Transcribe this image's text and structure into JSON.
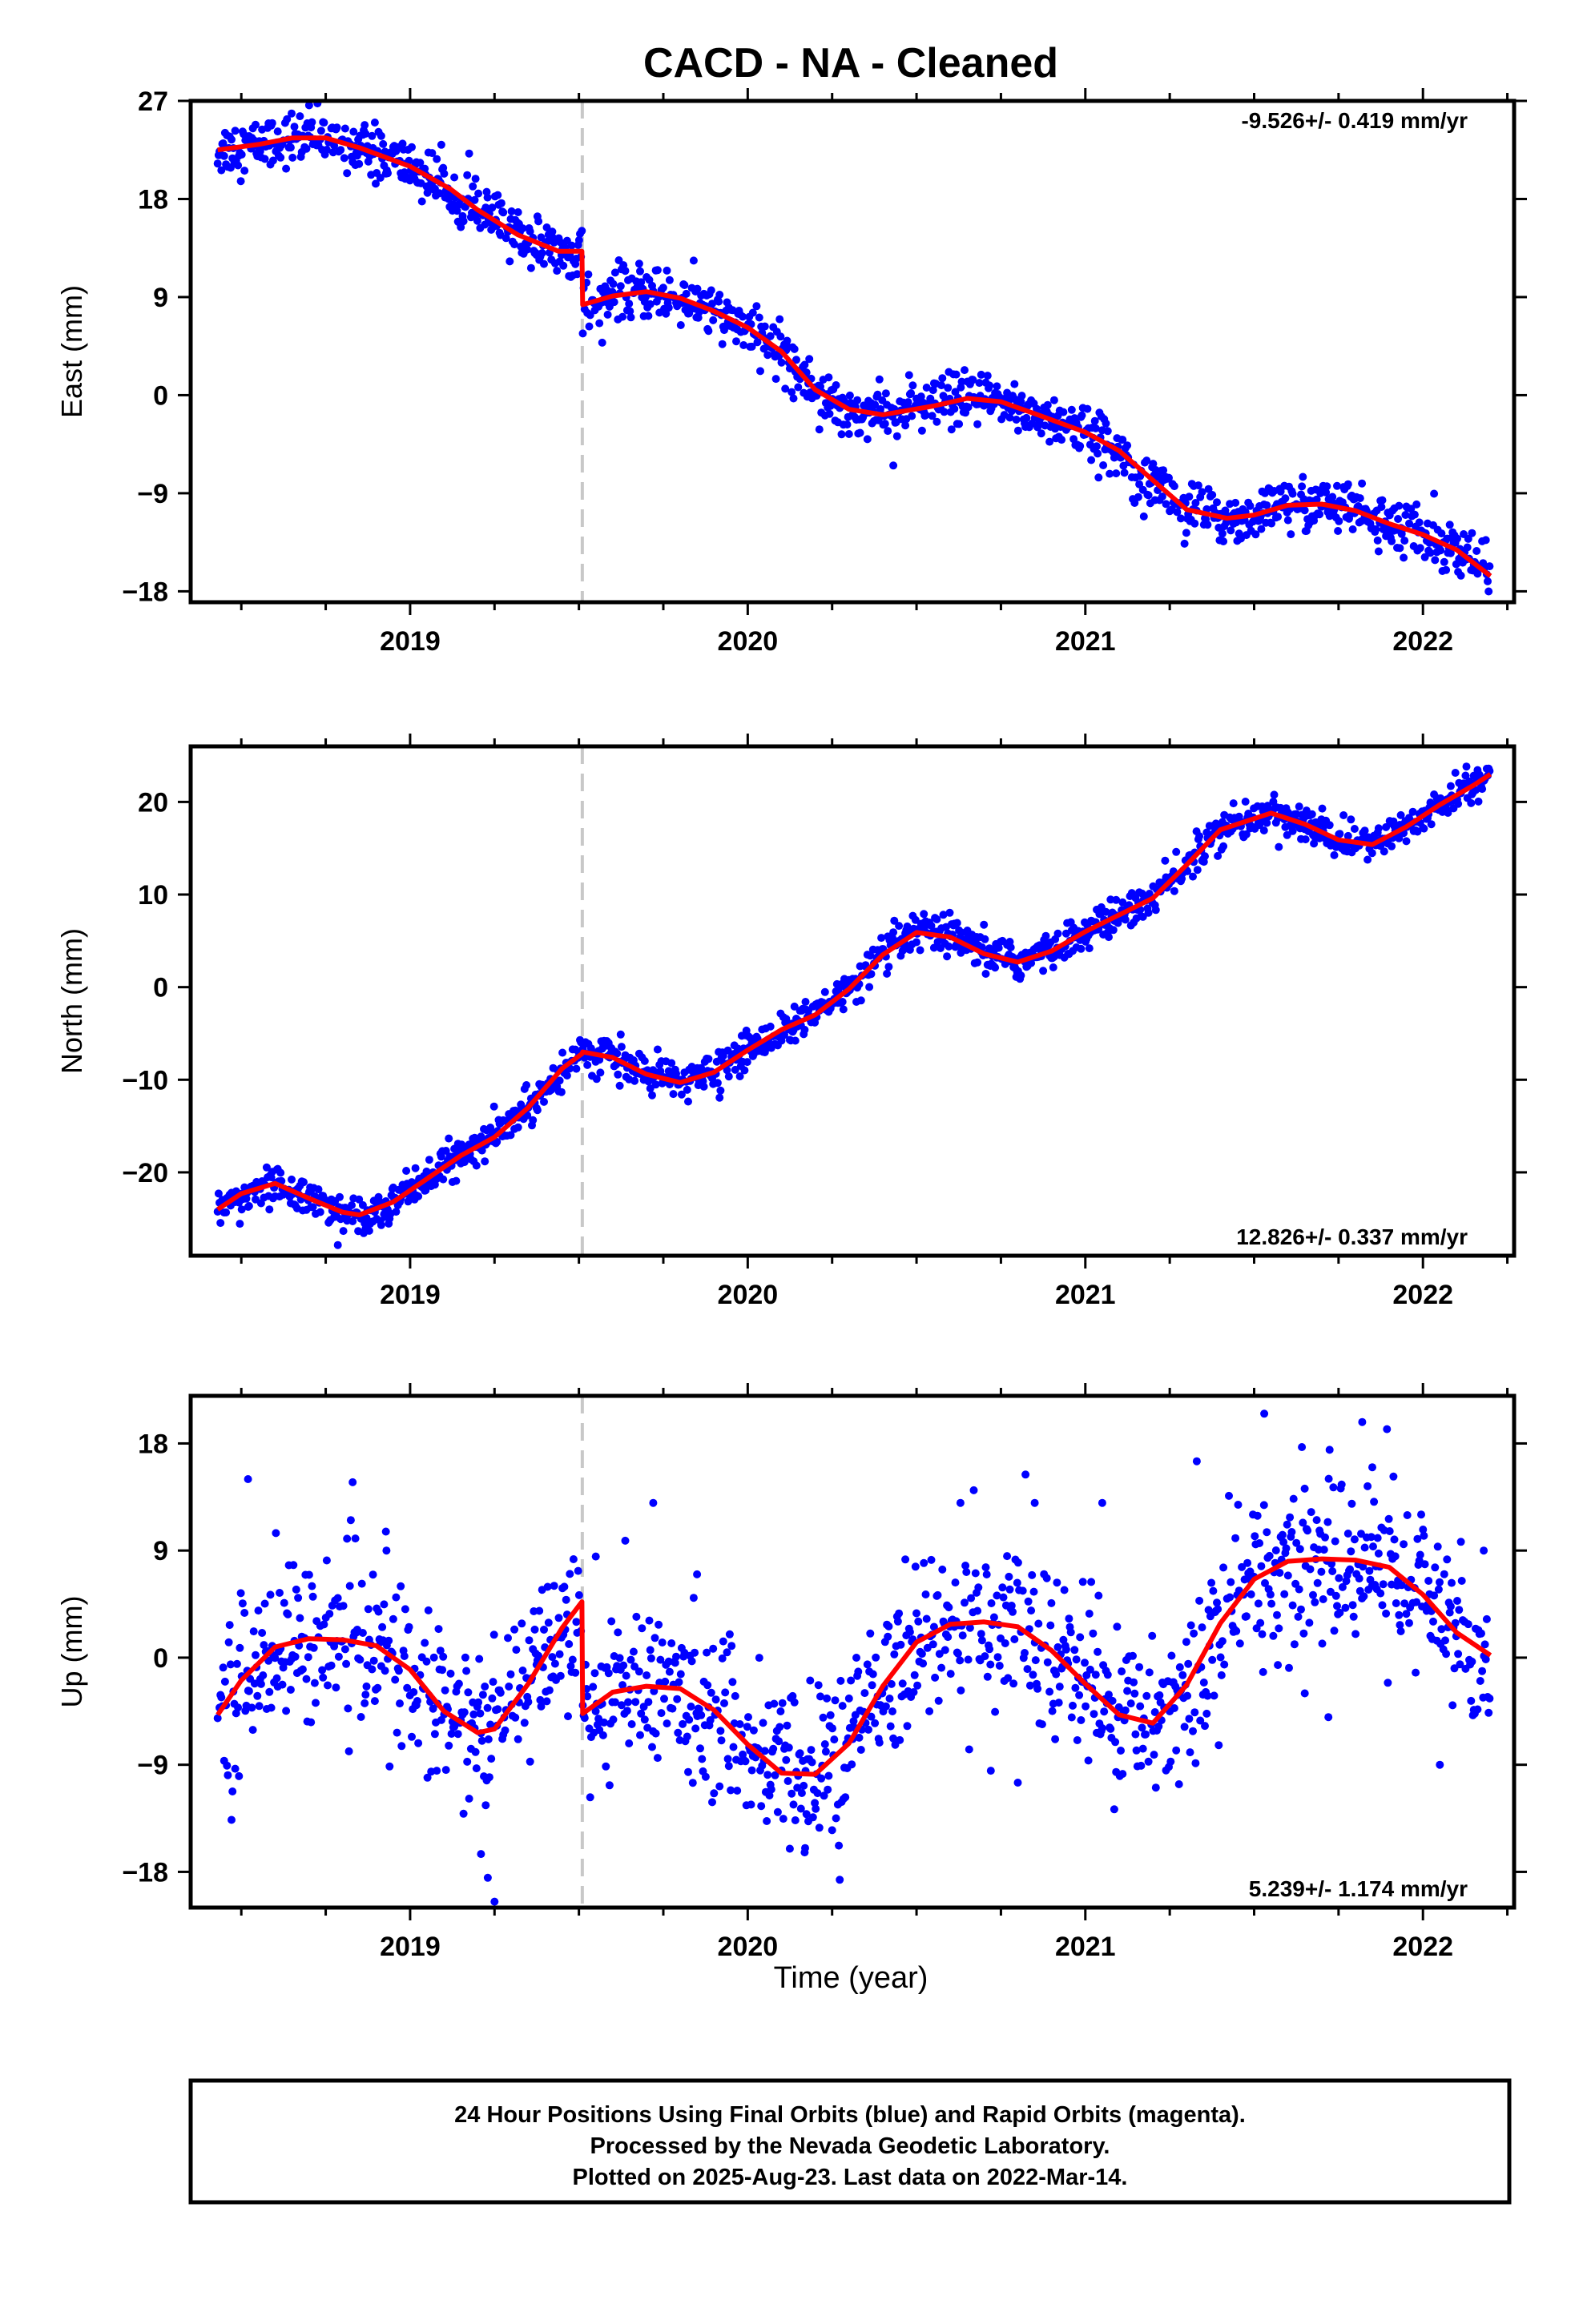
{
  "title": "CACD  - NA - Cleaned",
  "x_axis_label": "Time (year)",
  "footer": {
    "line1": "24 Hour Positions Using Final Orbits (blue) and Rapid Orbits (magenta).",
    "line2": "Processed by the Nevada Geodetic Laboratory.",
    "line3": "Plotted on 2025-Aug-23. Last data on 2022-Mar-14."
  },
  "colors": {
    "points": "#0000ff",
    "model": "#ff0000",
    "step_line": "#c8c8c8"
  },
  "chart_data": [
    {
      "type": "scatter",
      "ylabel": "East (mm)",
      "rate": "-9.526+/- 0.419 mm/yr",
      "rate_placement": "top-right",
      "xlim": [
        2018.35,
        2022.27
      ],
      "ylim": [
        -19,
        27
      ],
      "yticks": [
        27,
        18,
        9,
        0,
        -9,
        -18
      ],
      "xticks": [
        2019,
        2020,
        2021,
        2022
      ],
      "step_epoch": 2019.51,
      "noise": 1.2,
      "model": [
        [
          2018.43,
          22.5
        ],
        [
          2018.55,
          23.0
        ],
        [
          2018.65,
          23.6
        ],
        [
          2018.75,
          23.6
        ],
        [
          2018.85,
          22.7
        ],
        [
          2019.0,
          21.0
        ],
        [
          2019.12,
          18.9
        ],
        [
          2019.2,
          17.0
        ],
        [
          2019.32,
          14.7
        ],
        [
          2019.44,
          13.2
        ],
        [
          2019.509,
          13.2
        ],
        [
          2019.511,
          8.3
        ],
        [
          2019.6,
          9.1
        ],
        [
          2019.7,
          9.5
        ],
        [
          2019.8,
          8.9
        ],
        [
          2019.9,
          7.7
        ],
        [
          2020.0,
          6.2
        ],
        [
          2020.1,
          4.0
        ],
        [
          2020.2,
          0.5
        ],
        [
          2020.3,
          -1.3
        ],
        [
          2020.4,
          -1.8
        ],
        [
          2020.55,
          -1.0
        ],
        [
          2020.65,
          -0.3
        ],
        [
          2020.75,
          -0.6
        ],
        [
          2020.85,
          -1.7
        ],
        [
          2021.0,
          -3.4
        ],
        [
          2021.1,
          -5.1
        ],
        [
          2021.2,
          -7.8
        ],
        [
          2021.3,
          -10.5
        ],
        [
          2021.42,
          -11.3
        ],
        [
          2021.5,
          -11.0
        ],
        [
          2021.6,
          -10.1
        ],
        [
          2021.7,
          -10.0
        ],
        [
          2021.8,
          -10.6
        ],
        [
          2021.9,
          -11.8
        ],
        [
          2022.0,
          -12.8
        ],
        [
          2022.1,
          -14.2
        ],
        [
          2022.2,
          -16.6
        ]
      ]
    },
    {
      "type": "scatter",
      "ylabel": "North (mm)",
      "rate": "12.826+/- 0.337 mm/yr",
      "rate_placement": "bottom-right",
      "xlim": [
        2018.35,
        2022.27
      ],
      "ylim": [
        -29,
        26
      ],
      "yticks": [
        20,
        10,
        0,
        -10,
        -20
      ],
      "xticks": [
        2019,
        2020,
        2021,
        2022
      ],
      "step_epoch": 2019.51,
      "noise": 1.0,
      "model": [
        [
          2018.43,
          -24.0
        ],
        [
          2018.5,
          -22.3
        ],
        [
          2018.6,
          -21.2
        ],
        [
          2018.7,
          -22.8
        ],
        [
          2018.8,
          -24.3
        ],
        [
          2018.85,
          -24.6
        ],
        [
          2018.95,
          -23.2
        ],
        [
          2019.05,
          -20.7
        ],
        [
          2019.15,
          -18.2
        ],
        [
          2019.25,
          -16.2
        ],
        [
          2019.35,
          -13.0
        ],
        [
          2019.45,
          -8.8
        ],
        [
          2019.509,
          -7.2
        ],
        [
          2019.511,
          -7.0
        ],
        [
          2019.6,
          -7.6
        ],
        [
          2019.7,
          -9.4
        ],
        [
          2019.8,
          -10.3
        ],
        [
          2019.9,
          -9.2
        ],
        [
          2020.0,
          -6.8
        ],
        [
          2020.1,
          -4.6
        ],
        [
          2020.2,
          -3.0
        ],
        [
          2020.3,
          -0.2
        ],
        [
          2020.4,
          3.5
        ],
        [
          2020.5,
          5.9
        ],
        [
          2020.6,
          5.4
        ],
        [
          2020.7,
          3.6
        ],
        [
          2020.8,
          2.7
        ],
        [
          2020.9,
          3.9
        ],
        [
          2021.0,
          6.0
        ],
        [
          2021.1,
          7.8
        ],
        [
          2021.2,
          9.6
        ],
        [
          2021.3,
          13.2
        ],
        [
          2021.4,
          17.0
        ],
        [
          2021.55,
          18.8
        ],
        [
          2021.65,
          17.6
        ],
        [
          2021.75,
          15.9
        ],
        [
          2021.85,
          15.4
        ],
        [
          2021.95,
          17.3
        ],
        [
          2022.05,
          19.7
        ],
        [
          2022.15,
          21.8
        ],
        [
          2022.2,
          23.0
        ]
      ]
    },
    {
      "type": "scatter",
      "ylabel": "Up (mm)",
      "rate": "5.239+/- 1.174 mm/yr",
      "rate_placement": "bottom-right",
      "xlim": [
        2018.35,
        2022.27
      ],
      "ylim": [
        -21,
        22
      ],
      "yticks": [
        18,
        9,
        0,
        -9,
        -18
      ],
      "xticks": [
        2019,
        2020,
        2021,
        2022
      ],
      "step_epoch": 2019.51,
      "noise": 3.5,
      "model": [
        [
          2018.43,
          -4.8
        ],
        [
          2018.5,
          -1.9
        ],
        [
          2018.6,
          0.9
        ],
        [
          2018.7,
          1.6
        ],
        [
          2018.8,
          1.5
        ],
        [
          2018.9,
          1.0
        ],
        [
          2019.0,
          -1.0
        ],
        [
          2019.1,
          -4.5
        ],
        [
          2019.2,
          -6.3
        ],
        [
          2019.25,
          -6.0
        ],
        [
          2019.35,
          -2.2
        ],
        [
          2019.45,
          2.5
        ],
        [
          2019.509,
          4.7
        ],
        [
          2019.511,
          -4.7
        ],
        [
          2019.6,
          -2.9
        ],
        [
          2019.7,
          -2.4
        ],
        [
          2019.8,
          -2.6
        ],
        [
          2019.9,
          -4.4
        ],
        [
          2020.0,
          -7.3
        ],
        [
          2020.1,
          -9.7
        ],
        [
          2020.2,
          -9.8
        ],
        [
          2020.3,
          -7.2
        ],
        [
          2020.4,
          -2.4
        ],
        [
          2020.5,
          1.3
        ],
        [
          2020.6,
          2.8
        ],
        [
          2020.7,
          3.0
        ],
        [
          2020.8,
          2.6
        ],
        [
          2020.9,
          0.6
        ],
        [
          2021.0,
          -2.2
        ],
        [
          2021.1,
          -4.8
        ],
        [
          2021.2,
          -5.5
        ],
        [
          2021.3,
          -2.3
        ],
        [
          2021.4,
          2.9
        ],
        [
          2021.5,
          6.6
        ],
        [
          2021.6,
          8.1
        ],
        [
          2021.7,
          8.3
        ],
        [
          2021.8,
          8.2
        ],
        [
          2021.9,
          7.6
        ],
        [
          2022.0,
          5.3
        ],
        [
          2022.1,
          2.1
        ],
        [
          2022.2,
          0.2
        ]
      ],
      "outliers": [
        [
          2018.52,
          15.0
        ],
        [
          2018.93,
          9.0
        ],
        [
          2019.21,
          -16.5
        ],
        [
          2019.23,
          -18.5
        ],
        [
          2019.25,
          -20.5
        ],
        [
          2019.55,
          8.5
        ],
        [
          2019.72,
          13.0
        ],
        [
          2019.85,
          7.0
        ],
        [
          2020.17,
          -16.0
        ],
        [
          2020.25,
          -14.5
        ],
        [
          2020.63,
          13.0
        ],
        [
          2020.72,
          -9.5
        ],
        [
          2020.8,
          -10.5
        ],
        [
          2020.85,
          13.0
        ],
        [
          2021.05,
          13.0
        ],
        [
          2021.33,
          16.5
        ],
        [
          2021.53,
          20.5
        ],
        [
          2021.65,
          -3.0
        ],
        [
          2021.72,
          -5.0
        ],
        [
          2021.82,
          19.8
        ],
        [
          2021.85,
          16.0
        ],
        [
          2022.05,
          -9.0
        ],
        [
          2022.18,
          9.0
        ]
      ]
    }
  ]
}
